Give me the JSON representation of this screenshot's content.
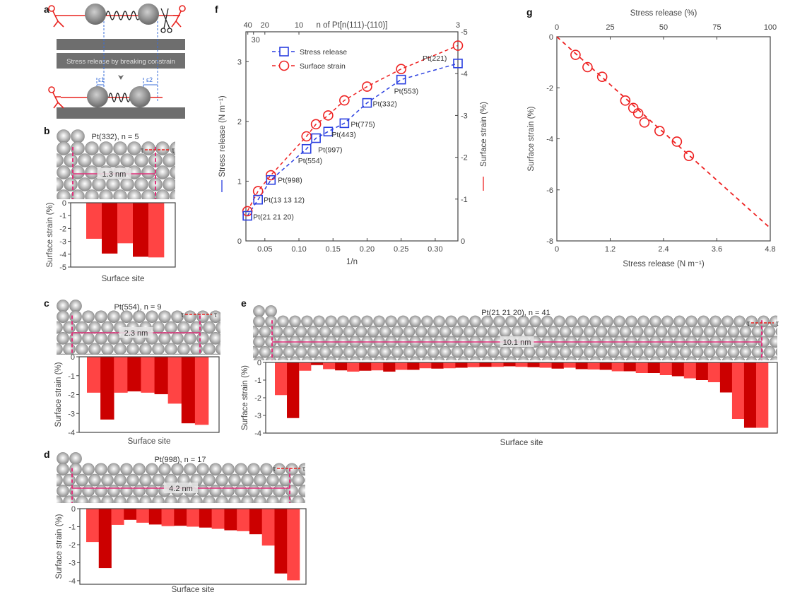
{
  "panel_labels": {
    "a": "a",
    "b": "b",
    "c": "c",
    "d": "d",
    "e": "e",
    "f": "f",
    "g": "g"
  },
  "schematic": {
    "banner": "Stress release by breaking constrain",
    "epsilon1": "ε1",
    "epsilon2": "ε2",
    "colors": {
      "substrate": "#6e6e6e",
      "figure": "#e8231f",
      "guide": "#3b6fd8"
    },
    "icons": [
      "person-pulling-icon",
      "scissors-icon",
      "spring-icon",
      "atom-sphere-icon",
      "down-arrow-icon"
    ]
  },
  "atom_panels": {
    "b": {
      "title": "Pt(332), n = 5",
      "width_label": "1.3 nm",
      "tau": "τ"
    },
    "c": {
      "title": "Pt(554), n = 9",
      "width_label": "2.3 nm",
      "tau": "τ"
    },
    "d": {
      "title": "Pt(998), n = 17",
      "width_label": "4.2 nm",
      "tau": "τ"
    },
    "e": {
      "title": "Pt(21 21 20), n = 41",
      "width_label": "10.1 nm",
      "tau": "τ"
    }
  },
  "colors": {
    "bar_light": "#ff4444",
    "bar_dark": "#cc0000",
    "stress": "#2a3fe0",
    "strain": "#ee2222",
    "guide": "#e0307a"
  },
  "chart_data": [
    {
      "id": "b",
      "type": "bar",
      "xlabel": "Surface site",
      "ylabel": "Surface strain (%)",
      "ylim": [
        -5,
        0
      ],
      "yticks": [
        0,
        -1,
        -2,
        -3,
        -4,
        -5
      ],
      "values": [
        -2.8,
        -3.95,
        -3.15,
        -4.2,
        -4.25
      ]
    },
    {
      "id": "c",
      "type": "bar",
      "xlabel": "Surface site",
      "ylabel": "Surface strain (%)",
      "ylim": [
        -4,
        0
      ],
      "yticks": [
        0,
        -1,
        -2,
        -3,
        -4
      ],
      "values": [
        -1.9,
        -3.32,
        -1.9,
        -1.83,
        -1.9,
        -1.98,
        -2.48,
        -3.52,
        -3.6
      ]
    },
    {
      "id": "d",
      "type": "bar",
      "xlabel": "Surface site",
      "ylabel": "Surface strain (%)",
      "ylim": [
        -4.2,
        0
      ],
      "yticks": [
        0,
        -1,
        -2,
        -3,
        -4
      ],
      "values": [
        -1.85,
        -3.3,
        -0.9,
        -0.62,
        -0.78,
        -0.88,
        -0.97,
        -0.95,
        -1.0,
        -1.05,
        -1.12,
        -1.2,
        -1.25,
        -1.42,
        -2.05,
        -3.6,
        -3.98
      ]
    },
    {
      "id": "e",
      "type": "bar",
      "xlabel": "Surface site",
      "ylabel": "Surface strain (%)",
      "ylim": [
        -4,
        0
      ],
      "yticks": [
        0,
        -1,
        -2,
        -3,
        -4
      ],
      "values": [
        -1.85,
        -3.15,
        -0.47,
        -0.15,
        -0.38,
        -0.45,
        -0.52,
        -0.47,
        -0.45,
        -0.52,
        -0.42,
        -0.42,
        -0.33,
        -0.35,
        -0.33,
        -0.3,
        -0.27,
        -0.25,
        -0.25,
        -0.22,
        -0.25,
        -0.27,
        -0.3,
        -0.35,
        -0.3,
        -0.38,
        -0.4,
        -0.42,
        -0.5,
        -0.5,
        -0.6,
        -0.6,
        -0.72,
        -0.78,
        -0.9,
        -1.0,
        -1.12,
        -1.7,
        -3.2,
        -3.7,
        -3.7
      ]
    },
    {
      "id": "f",
      "type": "line",
      "xlabel": "1/n",
      "ylabel": "Stress release (N m⁻¹)",
      "y2label": "Surface strain (%)",
      "top_xlabel": "n of Pt[n(111)-(110)]",
      "xlim": [
        0.0222,
        0.3333
      ],
      "ylim": [
        0,
        3.5
      ],
      "y2lim": [
        0,
        -5
      ],
      "xticks": [
        0.05,
        0.1,
        0.15,
        0.2,
        0.25,
        0.3
      ],
      "xticklabels": [
        "0.05",
        "0.10",
        "0.15",
        "0.20",
        "0.25",
        "0.30"
      ],
      "yticks": [
        0,
        1,
        2,
        3
      ],
      "y2ticks": [
        0,
        -1,
        -2,
        -3,
        -4,
        -5
      ],
      "top_ticks": [
        40,
        30,
        20,
        10,
        3
      ],
      "legend": "top-left",
      "x": [
        0.0244,
        0.04,
        0.0588,
        0.1111,
        0.125,
        0.1429,
        0.1667,
        0.2,
        0.25,
        0.3333
      ],
      "point_labels": [
        "Pt(21 21 20)",
        "Pt(13 13 12)",
        "Pt(998)",
        "Pt(554)",
        "Pt(997)",
        "Pt(443)",
        "Pt(775)",
        "Pt(332)",
        "Pt(553)",
        "Pt(221)"
      ],
      "series": [
        {
          "name": "Stress release",
          "axis": "left",
          "marker": "square",
          "values": [
            0.42,
            0.69,
            1.02,
            1.54,
            1.72,
            1.83,
            1.97,
            2.31,
            2.7,
            2.97
          ]
        },
        {
          "name": "Surface strain",
          "axis": "right",
          "marker": "circle",
          "values": [
            -0.71,
            -1.19,
            -1.57,
            -2.5,
            -2.79,
            -3.0,
            -3.36,
            -3.69,
            -4.11,
            -4.67
          ]
        }
      ]
    },
    {
      "id": "g",
      "type": "scatter",
      "xlabel": "Stress release (N m⁻¹)",
      "ylabel": "Surface strain (%)",
      "top_xlabel": "Stress release (%)",
      "xlim": [
        0,
        4.8
      ],
      "ylim": [
        -8,
        0
      ],
      "xticks": [
        0,
        1.2,
        2.4,
        3.6,
        4.8
      ],
      "xticklabels": [
        "0",
        "1.2",
        "2.4",
        "3.6",
        "4.8"
      ],
      "yticks": [
        0,
        -2,
        -4,
        -6,
        -8
      ],
      "top_ticks": [
        0,
        25,
        50,
        75,
        100
      ],
      "x": [
        0.42,
        0.69,
        1.02,
        1.54,
        1.72,
        1.83,
        1.97,
        2.31,
        2.7,
        2.97
      ],
      "y": [
        -0.71,
        -1.19,
        -1.57,
        -2.5,
        -2.79,
        -3.0,
        -3.36,
        -3.69,
        -4.11,
        -4.67
      ],
      "fit": {
        "x": [
          0,
          4.8
        ],
        "y": [
          0,
          -7.5
        ]
      }
    }
  ]
}
